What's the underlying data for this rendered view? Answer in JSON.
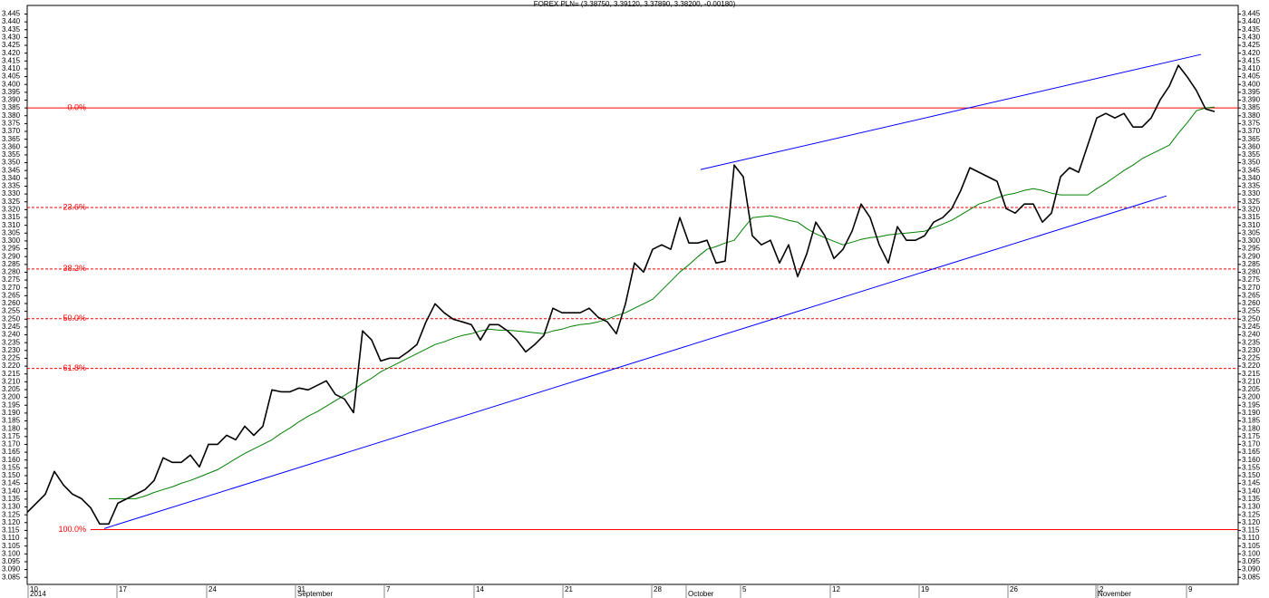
{
  "chart_data": {
    "type": "line",
    "title": "FOREX PLN= (3.38750, 3.39120, 3.37890, 3.38200, -0.00180)",
    "xlim": [
      0,
      133.6
    ],
    "ylim": [
      3.0805,
      3.4505
    ],
    "xticks": [
      {
        "value": 0.1,
        "label": "10"
      },
      {
        "value": 9.9,
        "label": "17"
      },
      {
        "value": 19.8,
        "label": "24"
      },
      {
        "value": 29.6,
        "label": "31"
      },
      {
        "value": 39.4,
        "label": "7"
      },
      {
        "value": 49.3,
        "label": "14"
      },
      {
        "value": 59.1,
        "label": "21"
      },
      {
        "value": 68.9,
        "label": "28"
      },
      {
        "value": 78.7,
        "label": "5"
      },
      {
        "value": 88.6,
        "label": "12"
      },
      {
        "value": 98.4,
        "label": "19"
      },
      {
        "value": 108.2,
        "label": "26"
      },
      {
        "value": 118.1,
        "label": "2"
      },
      {
        "value": 127.9,
        "label": "9"
      }
    ],
    "month_labels": [
      {
        "value": 0.1,
        "label": "2014"
      },
      {
        "value": 29.6,
        "label": "September"
      },
      {
        "value": 72.7,
        "label": "October"
      },
      {
        "value": 117.9,
        "label": "November"
      }
    ],
    "yticks": [
      3.085,
      {
        "value": 3.09,
        "label": "3.090"
      },
      3.095,
      {
        "value": 3.1,
        "label": "3.100"
      },
      3.105,
      {
        "value": 3.11,
        "label": "3.110"
      },
      3.115,
      {
        "value": 3.12,
        "label": "3.120"
      },
      3.125,
      {
        "value": 3.13,
        "label": "3.130"
      },
      3.135,
      {
        "value": 3.14,
        "label": "3.140"
      },
      3.145,
      {
        "value": 3.15,
        "label": "3.150"
      },
      3.155,
      {
        "value": 3.16,
        "label": "3.160"
      },
      3.165,
      {
        "value": 3.17,
        "label": "3.170"
      },
      3.175,
      {
        "value": 3.18,
        "label": "3.180"
      },
      3.185,
      {
        "value": 3.19,
        "label": "3.190"
      },
      3.195,
      {
        "value": 3.2,
        "label": "3.200"
      },
      3.205,
      {
        "value": 3.21,
        "label": "3.210"
      },
      3.215,
      {
        "value": 3.22,
        "label": "3.220"
      },
      3.225,
      {
        "value": 3.23,
        "label": "3.230"
      },
      3.235,
      {
        "value": 3.24,
        "label": "3.240"
      },
      3.245,
      {
        "value": 3.25,
        "label": "3.250"
      },
      3.255,
      {
        "value": 3.26,
        "label": "3.260"
      },
      3.265,
      {
        "value": 3.27,
        "label": "3.270"
      },
      3.275,
      {
        "value": 3.28,
        "label": "3.280"
      },
      3.285,
      {
        "value": 3.29,
        "label": "3.290"
      },
      3.295,
      {
        "value": 3.3,
        "label": "3.300"
      },
      3.305,
      {
        "value": 3.31,
        "label": "3.310"
      },
      3.315,
      {
        "value": 3.32,
        "label": "3.320"
      },
      3.325,
      {
        "value": 3.33,
        "label": "3.330"
      },
      3.335,
      {
        "value": 3.34,
        "label": "3.340"
      },
      3.345,
      {
        "value": 3.35,
        "label": "3.350"
      },
      3.355,
      {
        "value": 3.36,
        "label": "3.360"
      },
      3.365,
      {
        "value": 3.37,
        "label": "3.370"
      },
      3.375,
      {
        "value": 3.38,
        "label": "3.380"
      },
      3.385,
      {
        "value": 3.39,
        "label": "3.390"
      },
      3.395,
      {
        "value": 3.4,
        "label": "3.400"
      },
      3.405,
      {
        "value": 3.41,
        "label": "3.410"
      },
      3.415,
      {
        "value": 3.42,
        "label": "3.420"
      },
      3.425,
      {
        "value": 3.43,
        "label": "3.430"
      },
      3.435,
      {
        "value": 3.44,
        "label": "3.440"
      },
      3.445
    ],
    "fib_color": "#ff0000",
    "fib_levels": [
      {
        "value": 3.385,
        "label": "0.0%"
      },
      {
        "value": 3.3214,
        "label": "23.6%"
      },
      {
        "value": 3.2821,
        "label": "38.2%"
      },
      {
        "value": 3.2503,
        "label": "50.0%"
      },
      {
        "value": 3.2185,
        "label": "61.8%"
      },
      {
        "value": 3.1155,
        "label": "100.0%"
      }
    ],
    "trend_lines": [
      {
        "color": "#0000ff",
        "x": [
          8.5,
          125.7
        ],
        "y": [
          3.1162,
          3.3288
        ]
      },
      {
        "color": "#0000ff",
        "x": [
          74.3,
          129.5
        ],
        "y": [
          3.3456,
          3.4192
        ]
      }
    ],
    "series": [
      {
        "color": "#008000",
        "values": [
          null,
          null,
          null,
          null,
          null,
          null,
          null,
          null,
          null,
          3.1353,
          3.1353,
          3.1353,
          3.1353,
          3.137,
          3.1393,
          3.1411,
          3.1428,
          3.1451,
          3.1469,
          3.1492,
          3.1515,
          3.1538,
          3.1573,
          3.1608,
          3.1642,
          3.1671,
          3.17,
          3.1729,
          3.177,
          3.1805,
          3.1845,
          3.188,
          3.1909,
          3.1944,
          3.1979,
          3.2013,
          3.2048,
          3.2089,
          3.2123,
          3.2164,
          3.2193,
          3.2222,
          3.2251,
          3.228,
          3.2309,
          3.2338,
          3.2355,
          3.2378,
          3.2396,
          3.2407,
          3.2425,
          3.2436,
          3.243,
          3.243,
          3.2425,
          3.2419,
          3.2413,
          3.2407,
          3.2425,
          3.2436,
          3.2454,
          3.2465,
          3.2471,
          3.2483,
          3.25,
          3.2523,
          3.2541,
          3.257,
          3.2598,
          3.2627,
          3.2685,
          3.2743,
          3.2801,
          3.2848,
          3.29,
          3.2946,
          3.2964,
          3.2987,
          3.3004,
          3.3079,
          3.3149,
          3.3155,
          3.3161,
          3.3149,
          3.3132,
          3.312,
          3.3079,
          3.3045,
          3.3021,
          3.2998,
          3.2975,
          3.2992,
          3.301,
          3.3021,
          3.3027,
          3.3039,
          3.3045,
          3.305,
          3.3056,
          3.3062,
          3.3085,
          3.3108,
          3.3132,
          3.3166,
          3.3201,
          3.3236,
          3.3253,
          3.3276,
          3.3294,
          3.3305,
          3.3323,
          3.3334,
          3.3323,
          3.3305,
          3.3294,
          3.3294,
          3.3294,
          3.3294,
          3.3334,
          3.3369,
          3.341,
          3.345,
          3.3485,
          3.3526,
          3.3555,
          3.3583,
          3.3612,
          3.3688,
          3.3757,
          3.3833,
          3.385,
          3.3856
        ]
      },
      {
        "color": "#000000",
        "values": [
          3.1266,
          3.1324,
          3.1382,
          3.1527,
          3.144,
          3.1382,
          3.1353,
          3.1295,
          3.1191,
          3.1191,
          3.1324,
          3.1353,
          3.1382,
          3.1411,
          3.1469,
          3.1614,
          3.1585,
          3.1585,
          3.1631,
          3.1556,
          3.17,
          3.17,
          3.1758,
          3.1729,
          3.1816,
          3.1758,
          3.1816,
          3.2048,
          3.2036,
          3.2036,
          3.206,
          3.2048,
          3.2077,
          3.2106,
          3.2019,
          3.199,
          3.1903,
          3.2425,
          3.2367,
          3.2233,
          3.2251,
          3.2251,
          3.2291,
          3.2338,
          3.2483,
          3.2598,
          3.2541,
          3.25,
          3.2483,
          3.2465,
          3.2367,
          3.2465,
          3.2465,
          3.2425,
          3.2367,
          3.2291,
          3.2338,
          3.2396,
          3.257,
          3.2541,
          3.2541,
          3.2541,
          3.257,
          3.2512,
          3.2483,
          3.2407,
          3.2598,
          3.2859,
          3.2801,
          3.2946,
          3.2975,
          3.2946,
          3.3149,
          3.2987,
          3.2987,
          3.3004,
          3.2859,
          3.2871,
          3.3485,
          3.341,
          3.3033,
          3.2975,
          3.3004,
          3.2859,
          3.2975,
          3.2772,
          3.2917,
          3.312,
          3.3033,
          3.2888,
          3.2946,
          3.3062,
          3.3236,
          3.3149,
          3.2975,
          3.2859,
          3.3091,
          3.3004,
          3.3004,
          3.3033,
          3.312,
          3.3149,
          3.3207,
          3.3323,
          3.3468,
          3.3439,
          3.341,
          3.3381,
          3.3207,
          3.3178,
          3.3236,
          3.3236,
          3.312,
          3.3178,
          3.341,
          3.3468,
          3.3439,
          3.3612,
          3.3786,
          3.3815,
          3.3786,
          3.3815,
          3.3728,
          3.3728,
          3.3786,
          3.3902,
          3.3989,
          3.4122,
          3.4047,
          3.396,
          3.3844,
          3.3827
        ]
      }
    ]
  }
}
